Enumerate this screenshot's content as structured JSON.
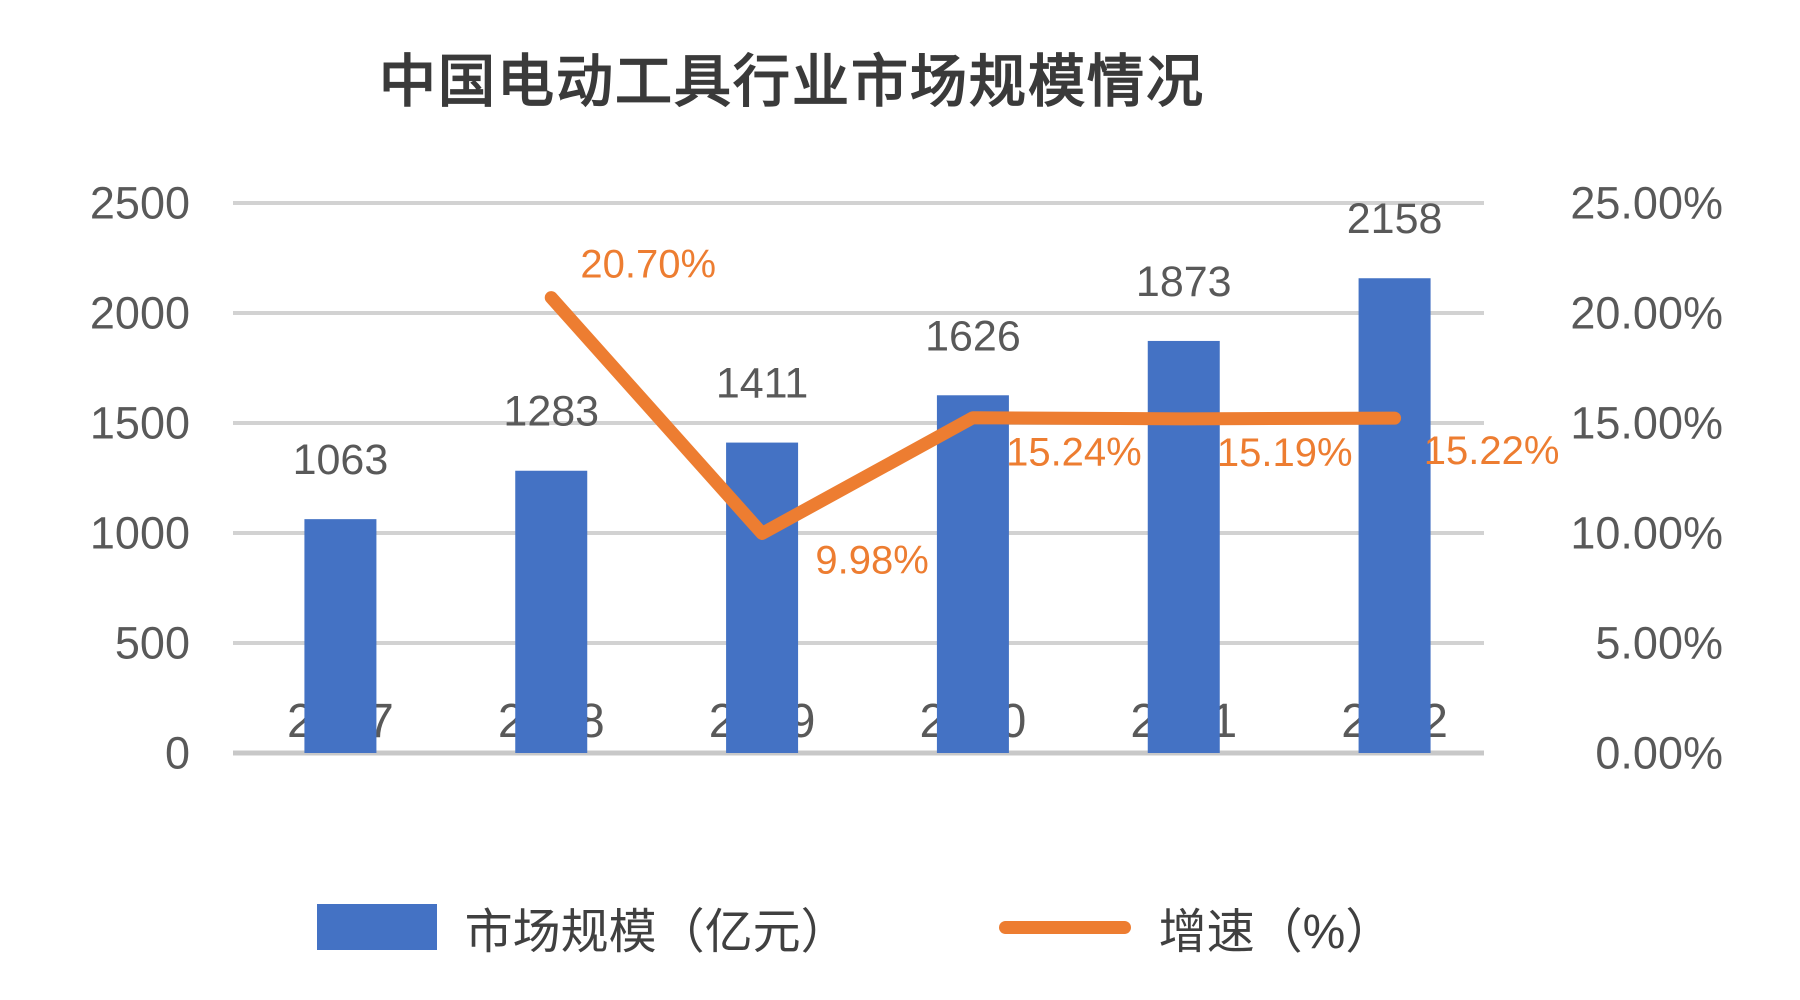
{
  "title": "中国电动工具行业市场规模情况",
  "chart_data": {
    "type": "combo_bar_line",
    "title": "中国电动工具行业市场规模情况",
    "categories": [
      "2017",
      "2018",
      "2019",
      "2020",
      "2021",
      "2022"
    ],
    "series": [
      {
        "name": "市场规模（亿元）",
        "type": "bar",
        "axis": "left",
        "color": "#4472C4",
        "values": [
          1063,
          1283,
          1411,
          1626,
          1873,
          2158
        ],
        "data_labels": [
          "1063",
          "1283",
          "1411",
          "1626",
          "1873",
          "2158"
        ]
      },
      {
        "name": "增速（%）",
        "type": "line",
        "axis": "right",
        "color": "#ED7D31",
        "values": [
          null,
          20.7,
          9.98,
          15.24,
          15.19,
          15.22
        ],
        "data_labels": [
          null,
          "20.70%",
          "9.98%",
          "15.24%",
          "15.19%",
          "15.22%"
        ]
      }
    ],
    "left_axis": {
      "min": 0,
      "max": 2500,
      "step": 500,
      "tick_labels": [
        "0",
        "500",
        "1000",
        "1500",
        "2000",
        "2500"
      ]
    },
    "right_axis": {
      "min": 0,
      "max": 25,
      "step": 5,
      "tick_labels": [
        "0.00%",
        "5.00%",
        "10.00%",
        "15.00%",
        "20.00%",
        "25.00%"
      ]
    },
    "grid": true,
    "legend_position": "bottom",
    "colors": {
      "grid": "#D2D2D2",
      "axis_line": "#C8C8C8",
      "tick_text": "#595959",
      "value_label_text": "#595959",
      "title_text": "#3A3A3A",
      "legend_text": "#404040",
      "background": "#FFFFFF"
    }
  }
}
